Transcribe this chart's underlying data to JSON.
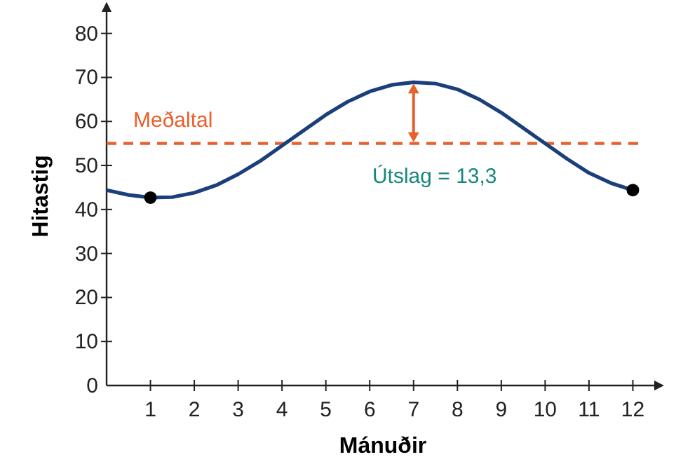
{
  "chart_data": {
    "type": "line",
    "xlabel": "Mánuðir",
    "ylabel": "Hitastig",
    "xlim": [
      0,
      12.6
    ],
    "ylim": [
      0,
      86
    ],
    "xticks": [
      1,
      2,
      3,
      4,
      5,
      6,
      7,
      8,
      9,
      10,
      11,
      12
    ],
    "yticks": [
      0,
      10,
      20,
      30,
      40,
      50,
      60,
      70,
      80
    ],
    "series": [
      {
        "color": "#1b3f7a",
        "x": [
          0,
          0.5,
          1,
          1.5,
          2,
          2.5,
          3,
          3.5,
          4,
          4.5,
          5,
          5.5,
          6,
          6.5,
          7,
          7.5,
          8,
          8.5,
          9,
          9.5,
          10,
          10.5,
          11,
          11.5,
          12
        ],
        "values": [
          44.4,
          43.3,
          42.7,
          42.8,
          43.8,
          45.5,
          48,
          51,
          54.5,
          58,
          61.5,
          64.5,
          66.8,
          68.3,
          68.9,
          68.6,
          67.3,
          65,
          62,
          58.5,
          55,
          51.5,
          48.3,
          46,
          44.4
        ]
      },
      {
        "type": "scatter",
        "color": "#000000",
        "marker": "circle",
        "x": [
          1,
          12
        ],
        "values": [
          42.7,
          44.4
        ]
      }
    ],
    "ref_lines": [
      {
        "axis": "y",
        "value": 55,
        "label": "Meðaltal",
        "color": "#e8602c",
        "line_style": "dashed"
      }
    ],
    "annotations": [
      "Útslag = 13,3"
    ],
    "grid": false
  }
}
